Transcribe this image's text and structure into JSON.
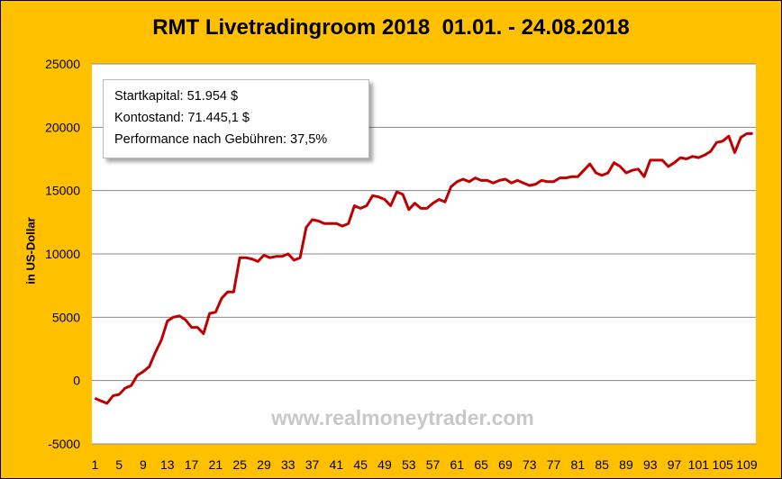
{
  "chart_data": {
    "type": "line",
    "title": "RMT Livetradingroom 2018  01.01. - 24.08.2018",
    "ylabel": "in US-Dollar",
    "xlabel": "",
    "ylim": [
      -5000,
      25000
    ],
    "yticks": [
      25000,
      20000,
      15000,
      10000,
      5000,
      0,
      -5000
    ],
    "xtick_step": 4,
    "grid": true,
    "series": [
      {
        "name": "Kontostand",
        "color": "#C00000",
        "values": [
          -1400,
          -1600,
          -1800,
          -1200,
          -1100,
          -600,
          -400,
          400,
          700,
          1100,
          2200,
          3200,
          4700,
          5000,
          5100,
          4800,
          4200,
          4200,
          3700,
          5300,
          5400,
          6500,
          7000,
          7000,
          9700,
          9700,
          9600,
          9400,
          9900,
          9700,
          9800,
          9800,
          10000,
          9500,
          9700,
          12100,
          12700,
          12600,
          12400,
          12400,
          12400,
          12200,
          12400,
          13800,
          13600,
          13800,
          14600,
          14500,
          14300,
          13800,
          14900,
          14700,
          13500,
          14000,
          13600,
          13600,
          14000,
          14300,
          14100,
          15300,
          15700,
          15900,
          15700,
          16000,
          15800,
          15800,
          15600,
          15800,
          15900,
          15600,
          15800,
          15600,
          15400,
          15500,
          15800,
          15700,
          15700,
          16000,
          16000,
          16100,
          16100,
          16600,
          17100,
          16400,
          16200,
          16400,
          17200,
          16900,
          16400,
          16600,
          16700,
          16100,
          17400,
          17400,
          17400,
          16900,
          17200,
          17600,
          17500,
          17700,
          17600,
          17800,
          18100,
          18800,
          18900,
          19300,
          18000,
          19200,
          19500,
          19500
        ]
      }
    ],
    "annotations": {
      "startkapital": "Startkapital: 51.954 $",
      "kontostand": "Kontostand: 71.445,1 $",
      "performance": "Performance nach Gebühren: 37,5%"
    },
    "watermark": "www.realmoneytrader.com"
  }
}
